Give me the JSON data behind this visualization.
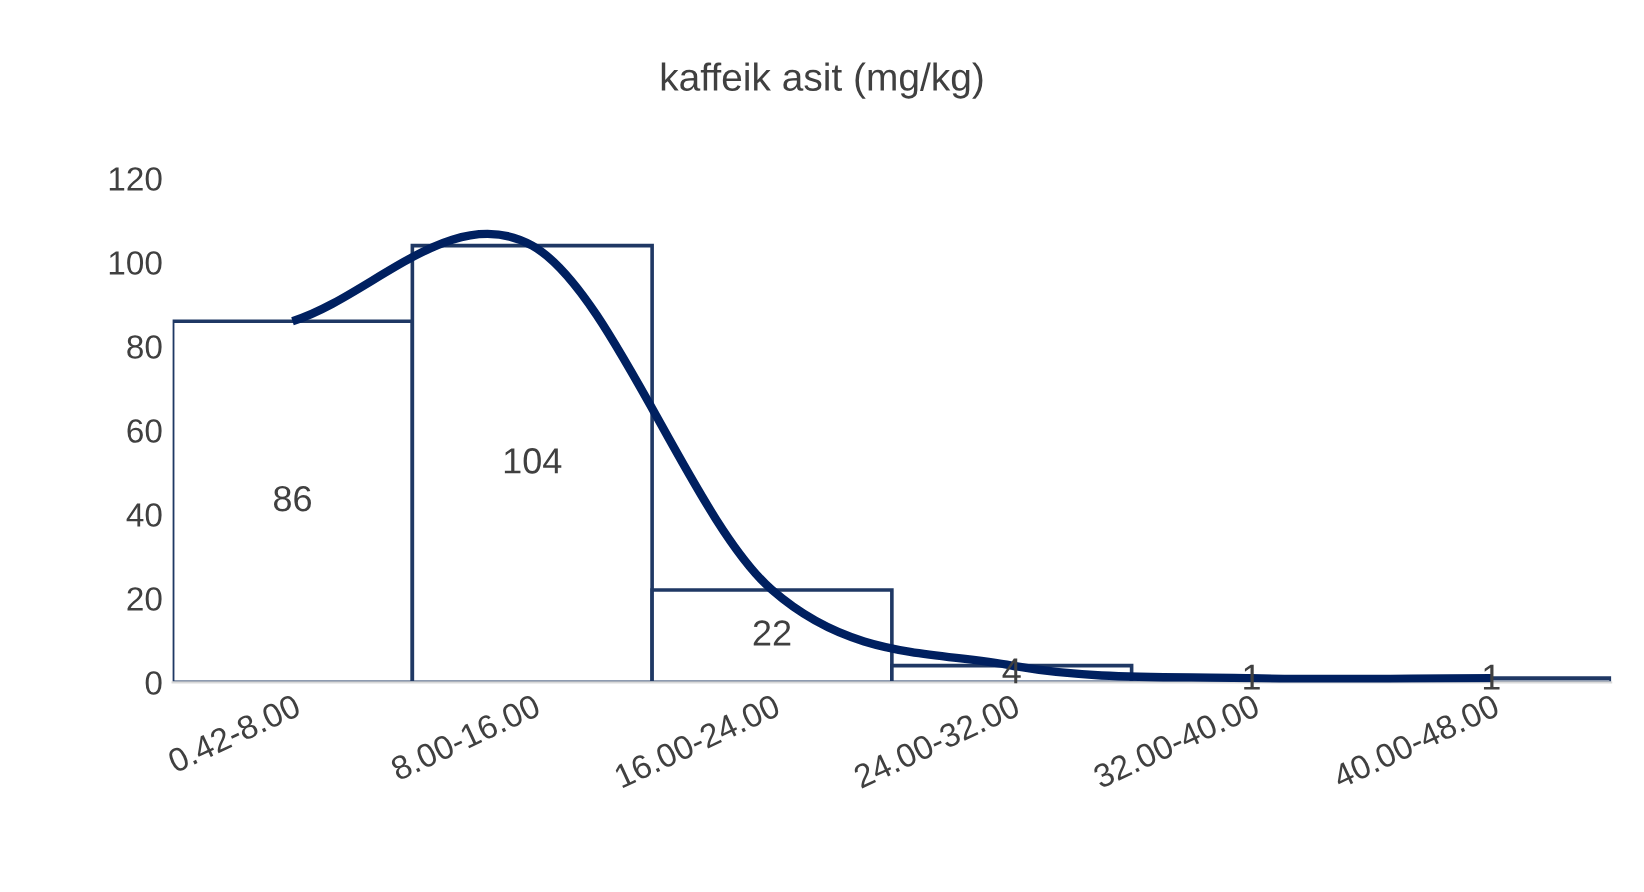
{
  "chart_data": {
    "type": "bar",
    "title": "kaffeik asit (mg/kg)",
    "categories": [
      "0.42-8.00",
      "8.00-16.00",
      "16.00-24.00",
      "24.00-32.00",
      "32.00-40.00",
      "40.00-48.00"
    ],
    "series": [
      {
        "color": "#1f3864",
        "values": [
          86,
          104,
          22,
          4,
          1,
          1
        ],
        "value_labels": [
          "86",
          "104",
          "22",
          "4",
          "1",
          "1"
        ]
      },
      {
        "type": "line",
        "color": "#002060",
        "values": [
          86,
          104,
          22,
          4,
          1,
          1
        ],
        "line_style": "solid"
      }
    ],
    "ylim": [
      0,
      120
    ],
    "yticks": [
      0,
      20,
      40,
      60,
      80,
      100,
      120
    ],
    "grid": false,
    "legend": false
  }
}
